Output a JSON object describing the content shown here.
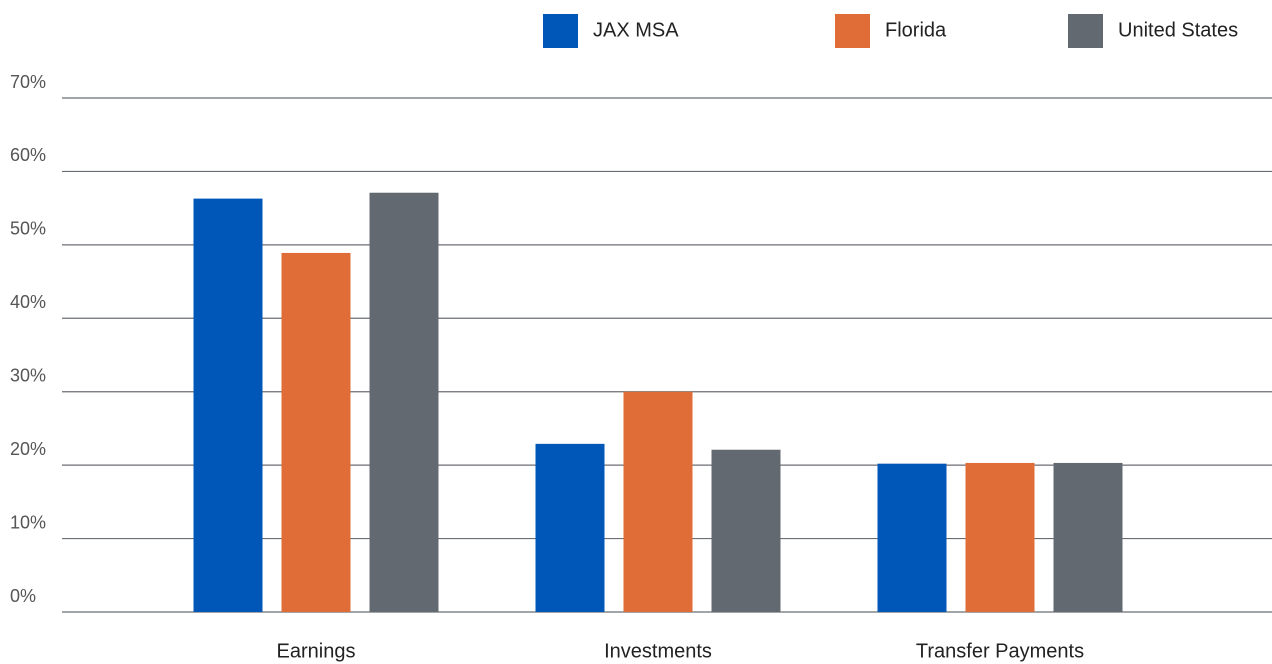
{
  "chart_data": {
    "type": "bar",
    "categories": [
      "Earnings",
      "Investments",
      "Transfer Payments"
    ],
    "series": [
      {
        "name": "JAX MSA",
        "color": "#0057b8",
        "values": [
          56.3,
          22.9,
          20.2
        ]
      },
      {
        "name": "Florida",
        "color": "#e06c37",
        "values": [
          48.9,
          30.0,
          20.3
        ]
      },
      {
        "name": "United States",
        "color": "#636971",
        "values": [
          57.1,
          22.1,
          20.3
        ]
      }
    ],
    "ylim": [
      0,
      70
    ],
    "yticks": [
      {
        "value": 0,
        "label": "0%"
      },
      {
        "value": 10,
        "label": "10%"
      },
      {
        "value": 20,
        "label": "20%"
      },
      {
        "value": 30,
        "label": "30%"
      },
      {
        "value": 40,
        "label": "40%"
      },
      {
        "value": 50,
        "label": "50%"
      },
      {
        "value": 60,
        "label": "60%"
      },
      {
        "value": 70,
        "label": "70%"
      }
    ],
    "grid": true,
    "legend": "top"
  }
}
